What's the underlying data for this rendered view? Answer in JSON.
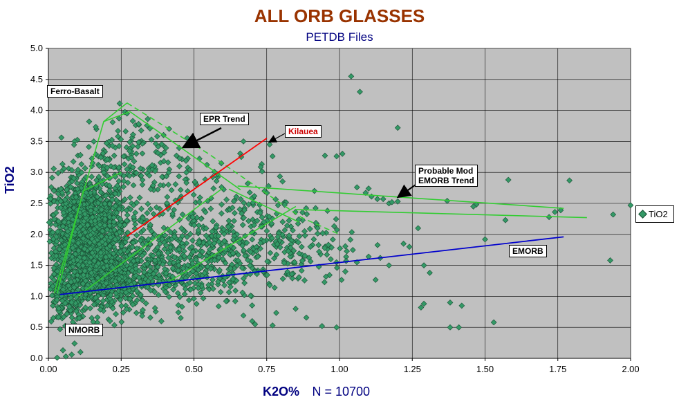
{
  "colors": {
    "plot_bg": "#c0c0c0",
    "grid": "#000000",
    "points": "#339966",
    "green_lines": "#33cc33",
    "red_line": "#ff0000",
    "blue_line": "#0000cc",
    "title": "#993300",
    "labels": "#000080"
  },
  "chart_data": {
    "type": "scatter",
    "title": "ALL ORB GLASSES",
    "subtitle": "PETDB Files",
    "xlabel": "K2O%",
    "n_label": "N = 10700",
    "ylabel": "TiO2",
    "xlim": [
      0,
      2
    ],
    "ylim": [
      0,
      5
    ],
    "x_ticks": [
      "0.00",
      "0.25",
      "0.50",
      "0.75",
      "1.00",
      "1.25",
      "1.50",
      "1.75",
      "2.00"
    ],
    "y_ticks": [
      "0.0",
      "0.5",
      "1.0",
      "1.5",
      "2.0",
      "2.5",
      "3.0",
      "3.5",
      "4.0",
      "4.5",
      "5.0"
    ],
    "grid": true,
    "legend": {
      "position": "right",
      "entries": [
        "TiO2"
      ]
    },
    "series": [
      {
        "name": "TiO2",
        "outliers": [
          [
            1.04,
            4.55
          ],
          [
            1.07,
            4.3
          ],
          [
            1.2,
            3.72
          ],
          [
            1.79,
            2.87
          ],
          [
            2.0,
            2.47
          ],
          [
            1.94,
            2.32
          ],
          [
            1.58,
            2.88
          ],
          [
            1.93,
            1.58
          ],
          [
            1.76,
            2.39
          ],
          [
            1.74,
            2.36
          ],
          [
            1.72,
            2.28
          ],
          [
            1.57,
            2.23
          ],
          [
            1.47,
            2.48
          ],
          [
            1.46,
            2.45
          ],
          [
            1.37,
            2.54
          ],
          [
            1.5,
            1.92
          ],
          [
            1.53,
            0.58
          ],
          [
            1.41,
            0.5
          ],
          [
            1.38,
            0.5
          ],
          [
            1.42,
            0.85
          ],
          [
            1.38,
            0.9
          ],
          [
            1.29,
            0.88
          ],
          [
            1.28,
            0.82
          ],
          [
            1.27,
            2.1
          ],
          [
            1.29,
            1.5
          ],
          [
            1.31,
            1.38
          ],
          [
            1.24,
            1.8
          ],
          [
            1.22,
            1.85
          ],
          [
            0.99,
            0.5
          ],
          [
            0.94,
            0.52
          ],
          [
            0.77,
            0.53
          ],
          [
            0.71,
            0.55
          ],
          [
            0.7,
            0.6
          ],
          [
            0.67,
            0.69
          ],
          [
            0.77,
            3.26
          ],
          [
            0.76,
            3.45
          ],
          [
            0.67,
            3.5
          ],
          [
            0.95,
            3.27
          ],
          [
            0.99,
            3.26
          ],
          [
            1.01,
            3.3
          ],
          [
            1.09,
            2.67
          ],
          [
            1.11,
            2.61
          ],
          [
            1.13,
            2.57
          ],
          [
            1.15,
            2.57
          ],
          [
            1.17,
            2.5
          ],
          [
            1.18,
            2.52
          ],
          [
            1.2,
            2.53
          ],
          [
            1.1,
            2.74
          ],
          [
            1.06,
            2.76
          ],
          [
            0.17,
            0.42
          ],
          [
            0.08,
            0.06
          ],
          [
            0.05,
            0.13
          ],
          [
            0.06,
            0.03
          ],
          [
            0.03,
            0.01
          ],
          [
            0.11,
            0.1
          ],
          [
            0.04,
            0.47
          ],
          [
            0.02,
            1.36
          ],
          [
            0.01,
            1.7
          ],
          [
            0.11,
            3.28
          ],
          [
            0.2,
            3.47
          ],
          [
            0.22,
            3.43
          ],
          [
            0.27,
            3.95
          ],
          [
            0.29,
            3.83
          ],
          [
            0.31,
            3.78
          ],
          [
            0.14,
            3.82
          ],
          [
            0.1,
            2.73
          ],
          [
            0.44,
            3.27
          ],
          [
            0.45,
            3.1
          ],
          [
            0.57,
            3.01
          ],
          [
            0.86,
            2.24
          ],
          [
            0.82,
            2.14
          ],
          [
            0.88,
            2.05
          ],
          [
            0.9,
            1.8
          ],
          [
            0.93,
            1.72
          ],
          [
            0.97,
            1.6
          ],
          [
            1.02,
            1.4
          ],
          [
            1.06,
            1.55
          ],
          [
            1.1,
            1.64
          ],
          [
            1.14,
            1.62
          ],
          [
            1.17,
            1.5
          ]
        ]
      }
    ],
    "clusters": [
      {
        "cx": 0.13,
        "cy": 2.05,
        "sx": 0.07,
        "sy": 0.45,
        "n": 1300
      },
      {
        "cx": 0.2,
        "cy": 1.3,
        "sx": 0.09,
        "sy": 0.3,
        "n": 550
      },
      {
        "cx": 0.42,
        "cy": 1.55,
        "sx": 0.16,
        "sy": 0.32,
        "n": 450
      },
      {
        "cx": 0.55,
        "cy": 2.35,
        "sx": 0.17,
        "sy": 0.4,
        "n": 220
      },
      {
        "cx": 0.28,
        "cy": 3.25,
        "sx": 0.08,
        "sy": 0.35,
        "n": 140
      },
      {
        "cx": 0.8,
        "cy": 1.75,
        "sx": 0.14,
        "sy": 0.35,
        "n": 180
      },
      {
        "cx": 0.06,
        "cy": 0.95,
        "sx": 0.03,
        "sy": 0.2,
        "n": 120
      }
    ],
    "lines": [
      {
        "name": "green-envelope-left",
        "color": "green",
        "dash": false,
        "points": [
          [
            0.02,
            1.05
          ],
          [
            0.19,
            3.82
          ],
          [
            0.27,
            4.12
          ]
        ]
      },
      {
        "name": "green-envelope-inner",
        "color": "green",
        "dash": false,
        "points": [
          [
            0.03,
            1.05
          ],
          [
            0.12,
            2.7
          ],
          [
            0.25,
            3.0
          ]
        ]
      },
      {
        "name": "green-envelope-upper",
        "color": "green",
        "dash": false,
        "points": [
          [
            0.19,
            3.82
          ],
          [
            0.28,
            3.98
          ],
          [
            0.66,
            2.72
          ]
        ]
      },
      {
        "name": "green-envelope-dashed",
        "color": "green",
        "dash": true,
        "points": [
          [
            0.27,
            4.12
          ],
          [
            0.55,
            3.3
          ],
          [
            0.87,
            2.27
          ],
          [
            1.0,
            2.0
          ]
        ]
      },
      {
        "name": "green-mod-emorb-1",
        "color": "green",
        "dash": false,
        "points": [
          [
            0.65,
            2.78
          ],
          [
            1.77,
            2.42
          ]
        ]
      },
      {
        "name": "green-mod-emorb-2",
        "color": "green",
        "dash": false,
        "points": [
          [
            0.85,
            2.4
          ],
          [
            1.85,
            2.27
          ]
        ]
      },
      {
        "name": "green-inner-1",
        "color": "green",
        "dash": false,
        "points": [
          [
            0.1,
            1.0
          ],
          [
            0.6,
            2.75
          ]
        ]
      },
      {
        "name": "green-inner-2",
        "color": "green",
        "dash": false,
        "points": [
          [
            0.4,
            1.2
          ],
          [
            0.85,
            2.45
          ]
        ]
      },
      {
        "name": "green-inner-3",
        "color": "green",
        "dash": false,
        "points": [
          [
            0.62,
            2.73
          ],
          [
            0.86,
            2.2
          ]
        ]
      },
      {
        "name": "kilauea-red",
        "color": "red",
        "dash": false,
        "points": [
          [
            0.27,
            1.97
          ],
          [
            0.75,
            3.55
          ]
        ]
      },
      {
        "name": "emorb-blue",
        "color": "blue",
        "dash": false,
        "points": [
          [
            0.04,
            1.03
          ],
          [
            1.77,
            1.96
          ]
        ]
      }
    ],
    "annotations": [
      {
        "id": "ferro",
        "text": "Ferro-Basalt",
        "color": "#000080"
      },
      {
        "id": "epr",
        "text": "EPR Trend",
        "color": "#000080"
      },
      {
        "id": "kilauea",
        "text": "Kilauea",
        "color": "#cc0000"
      },
      {
        "id": "probable",
        "text": "Probable Mod EMORB Trend",
        "line1": "Probable Mod",
        "line2": "EMORB Trend",
        "color": "#000080"
      },
      {
        "id": "emorb",
        "text": "EMORB",
        "color": "#000080"
      },
      {
        "id": "nmorb",
        "text": "NMORB",
        "color": "#000080"
      }
    ]
  }
}
